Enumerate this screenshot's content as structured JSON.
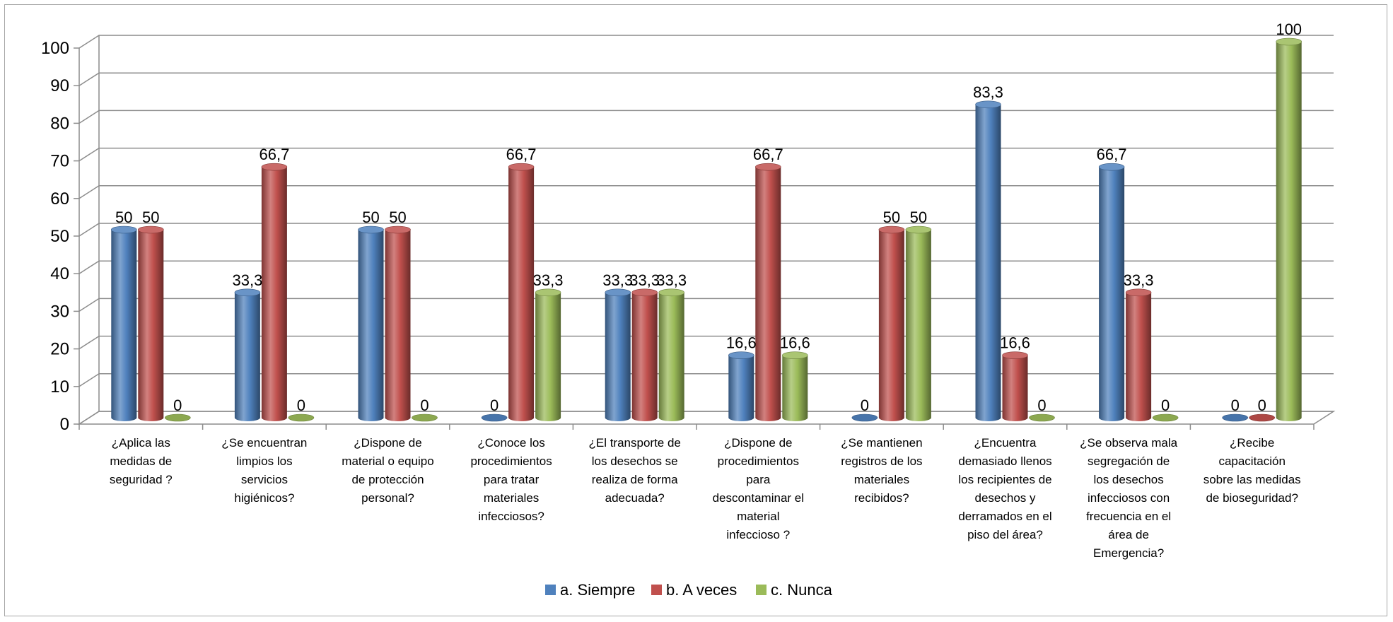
{
  "chart_data": {
    "type": "bar",
    "style": "3d-cylinder",
    "categories": [
      "¿Aplica las medidas de seguridad ?",
      "¿Se encuentran limpios los servicios higiénicos?",
      "¿Dispone de material o equipo de protección personal?",
      "¿Conoce los procedimientos para tratar materiales infecciosos?",
      "¿El transporte de los desechos se realiza de forma adecuada?",
      "¿Dispone de procedimientos para descontaminar el material infeccioso ?",
      "¿Se mantienen registros de los materiales recibidos?",
      "¿Encuentra demasiado llenos los recipientes de desechos y derramados en el piso del área?",
      "¿Se observa mala segregación de los desechos infecciosos con frecuencia en el área de Emergencia?",
      "¿Recibe capacitación sobre las medidas de bioseguridad?"
    ],
    "category_lines": [
      [
        "¿Aplica las",
        "medidas de",
        "seguridad ?"
      ],
      [
        "¿Se encuentran",
        "limpios los",
        "servicios",
        "higiénicos?"
      ],
      [
        "¿Dispone de",
        "material o equipo",
        "de protección",
        "personal?"
      ],
      [
        "¿Conoce los",
        "procedimientos",
        "para tratar",
        "materiales",
        "infecciosos?"
      ],
      [
        "¿El transporte de",
        "los desechos se",
        "realiza de forma",
        "adecuada?"
      ],
      [
        "¿Dispone de",
        "procedimientos",
        "para",
        "descontaminar el",
        "material",
        "infeccioso ?"
      ],
      [
        "¿Se mantienen",
        "registros de los",
        "materiales",
        "recibidos?"
      ],
      [
        "¿Encuentra",
        "demasiado llenos",
        "los recipientes de",
        "desechos y",
        "derramados en el",
        "piso del área?"
      ],
      [
        "¿Se observa mala",
        "segregación de",
        "los desechos",
        "infecciosos con",
        "frecuencia en el",
        "área de",
        "Emergencia?"
      ],
      [
        "¿Recibe",
        "capacitación",
        "sobre las medidas",
        "de bioseguridad?"
      ]
    ],
    "series": [
      {
        "name": "a. Siempre",
        "color": "#4f81bd",
        "values": [
          50,
          33.3,
          50,
          0,
          33.3,
          16.6,
          0,
          83.3,
          66.7,
          0
        ],
        "labels": [
          "50",
          "33,3",
          "50",
          "0",
          "33,3",
          "16,6",
          "0",
          "83,3",
          "66,7",
          "0"
        ]
      },
      {
        "name": "b. A veces",
        "color": "#c0504d",
        "values": [
          50,
          66.7,
          50,
          66.7,
          33.3,
          66.7,
          50,
          16.6,
          33.3,
          0
        ],
        "labels": [
          "50",
          "66,7",
          "50",
          "66,7",
          "33,3",
          "66,7",
          "50",
          "16,6",
          "33,3",
          "0"
        ]
      },
      {
        "name": "c. Nunca",
        "color": "#9bbb59",
        "values": [
          0,
          0,
          0,
          33.3,
          33.3,
          16.6,
          50,
          0,
          0,
          100
        ],
        "labels": [
          "0",
          "0",
          "0",
          "33,3",
          "33,3",
          "16,6",
          "50",
          "0",
          "0",
          "100"
        ]
      }
    ],
    "y_ticks": [
      0,
      10,
      20,
      30,
      40,
      50,
      60,
      70,
      80,
      90,
      100
    ],
    "ylim": [
      0,
      100
    ],
    "grid": true,
    "legend": "bottom"
  }
}
